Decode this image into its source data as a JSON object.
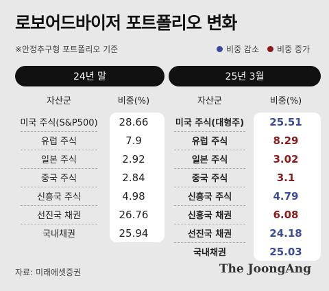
{
  "title": "로보어드바이저 포트폴리오 변화",
  "subtitle": "※안정추구형 포트폴리오 기준",
  "legend": [
    {
      "label": "비중 감소",
      "color": "#3a4b9c"
    },
    {
      "label": "비중 증가",
      "color": "#8b1a1a"
    }
  ],
  "left": {
    "period": "24년 말",
    "col_asset": "자산군",
    "col_weight": "비중(%)",
    "rows": [
      {
        "asset": "미국 주식(S&P500)",
        "weight": "28.66"
      },
      {
        "asset": "유럽 주식",
        "weight": "7.9"
      },
      {
        "asset": "일본 주식",
        "weight": "2.92"
      },
      {
        "asset": "중국 주식",
        "weight": "2.84"
      },
      {
        "asset": "신흥국 주식",
        "weight": "4.98"
      },
      {
        "asset": "선진국 채권",
        "weight": "26.76"
      },
      {
        "asset": "국내채권",
        "weight": "25.94"
      }
    ]
  },
  "right": {
    "period": "25년 3월",
    "col_asset": "자산군",
    "col_weight": "비중(%)",
    "rows": [
      {
        "asset": "미국 주식(대형주)",
        "weight": "25.51",
        "change": "decrease"
      },
      {
        "asset": "유럽 주식",
        "weight": "8.29",
        "change": "increase"
      },
      {
        "asset": "일본 주식",
        "weight": "3.02",
        "change": "increase"
      },
      {
        "asset": "중국 주식",
        "weight": "3.1",
        "change": "increase"
      },
      {
        "asset": "신흥국 주식",
        "weight": "4.79",
        "change": "decrease"
      },
      {
        "asset": "신흥국 채권",
        "weight": "6.08",
        "change": "increase"
      },
      {
        "asset": "선진국 채권",
        "weight": "24.18",
        "change": "decrease"
      },
      {
        "asset": "국내채권",
        "weight": "25.03",
        "change": "decrease"
      }
    ]
  },
  "source": "자료: 미래에셋증권",
  "brand": "The JoongAng"
}
